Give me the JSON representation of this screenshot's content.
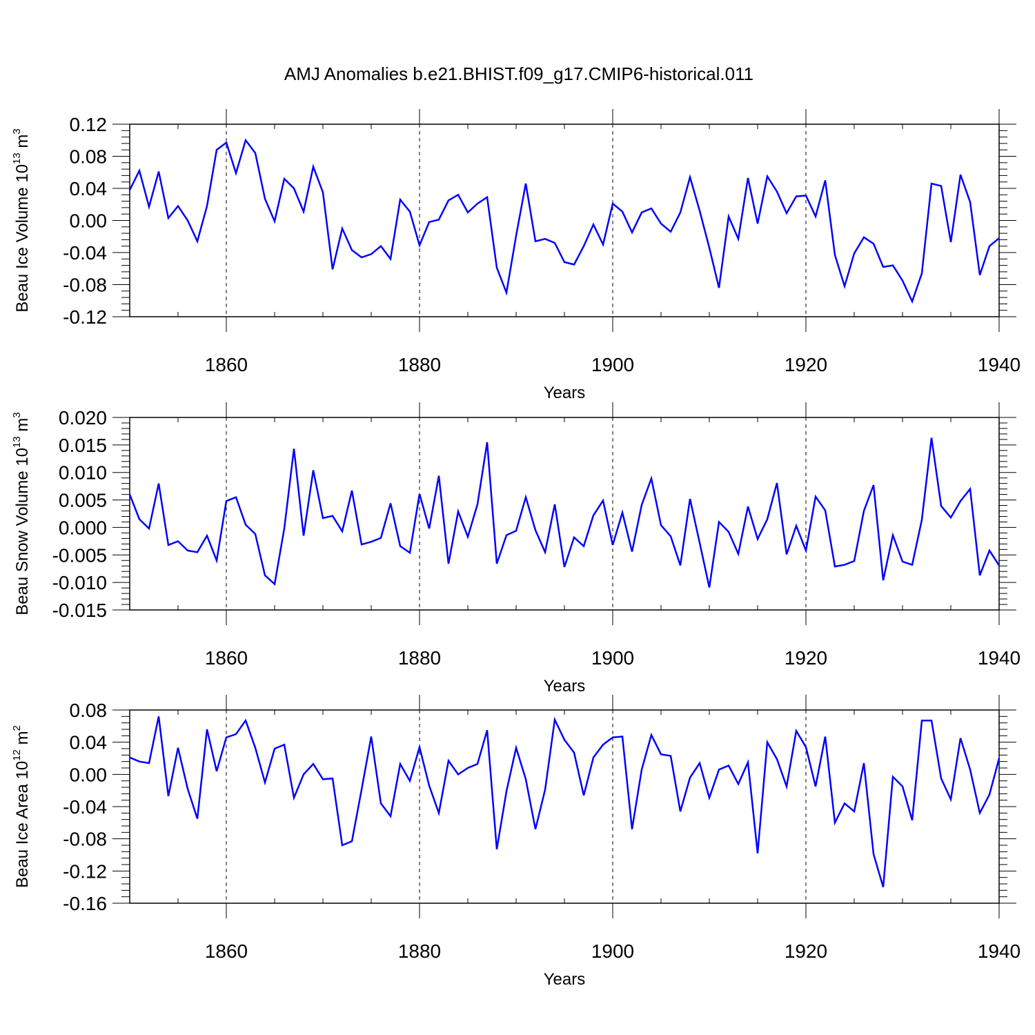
{
  "chart_data": {
    "type": "line",
    "title": "AMJ Anomalies b.e21.BHIST.f09_g17.CMIP6-historical.011",
    "line_color": "#0000ff",
    "xlim": [
      1850,
      1940
    ],
    "xticks": [
      1860,
      1880,
      1900,
      1920,
      1940
    ],
    "xtick_labels": [
      "1860",
      "1880",
      "1900",
      "1920",
      "1940"
    ],
    "xlabel": "Years",
    "x": [
      1850,
      1851,
      1852,
      1853,
      1854,
      1855,
      1856,
      1857,
      1858,
      1859,
      1860,
      1861,
      1862,
      1863,
      1864,
      1865,
      1866,
      1867,
      1868,
      1869,
      1870,
      1871,
      1872,
      1873,
      1874,
      1875,
      1876,
      1877,
      1878,
      1879,
      1880,
      1881,
      1882,
      1883,
      1884,
      1885,
      1886,
      1887,
      1888,
      1889,
      1890,
      1891,
      1892,
      1893,
      1894,
      1895,
      1896,
      1897,
      1898,
      1899,
      1900,
      1901,
      1902,
      1903,
      1904,
      1905,
      1906,
      1907,
      1908,
      1909,
      1910,
      1911,
      1912,
      1913,
      1914,
      1915,
      1916,
      1917,
      1918,
      1919,
      1920,
      1921,
      1922,
      1923,
      1924,
      1925,
      1926,
      1927,
      1928,
      1929,
      1930,
      1931,
      1932,
      1933,
      1934,
      1935,
      1936,
      1937,
      1938,
      1939,
      1940
    ],
    "panels": [
      {
        "name": "ice-volume",
        "ylabel_main": "Beau Ice Volume 10",
        "ylabel_exp": "13",
        "ylabel_unit": " m",
        "ylabel_unit_exp": "3",
        "ylim": [
          -0.12,
          0.12
        ],
        "yticks": [
          0.12,
          0.08,
          0.04,
          0.0,
          -0.04,
          -0.08,
          -0.12
        ],
        "ytick_labels": [
          "0.12",
          "0.08",
          "0.04",
          "0.00",
          "-0.04",
          "-0.08",
          "-0.12"
        ],
        "values": [
          0.038,
          0.062,
          0.017,
          0.061,
          0.003,
          0.018,
          0.0,
          -0.026,
          0.018,
          0.088,
          0.097,
          0.059,
          0.1,
          0.084,
          0.027,
          -0.001,
          0.052,
          0.04,
          0.011,
          0.067,
          0.035,
          -0.061,
          -0.01,
          -0.037,
          -0.046,
          -0.042,
          -0.032,
          -0.048,
          0.026,
          0.011,
          -0.031,
          -0.002,
          0.001,
          0.025,
          0.032,
          0.01,
          0.021,
          0.029,
          -0.059,
          -0.09,
          -0.019,
          0.046,
          -0.026,
          -0.023,
          -0.028,
          -0.052,
          -0.055,
          -0.032,
          -0.005,
          -0.03,
          0.021,
          0.011,
          -0.015,
          0.01,
          0.015,
          -0.004,
          -0.014,
          0.01,
          0.054,
          0.012,
          -0.034,
          -0.084,
          0.005,
          -0.023,
          0.053,
          -0.004,
          0.055,
          0.036,
          0.009,
          0.03,
          0.031,
          0.005,
          0.05,
          -0.043,
          -0.082,
          -0.041,
          -0.021,
          -0.029,
          -0.058,
          -0.056,
          -0.075,
          -0.101,
          -0.066,
          0.046,
          0.043,
          -0.027,
          0.057,
          0.023,
          -0.068,
          -0.032,
          -0.022
        ]
      },
      {
        "name": "snow-volume",
        "ylabel_main": "Beau Snow Volume 10",
        "ylabel_exp": "13",
        "ylabel_unit": " m",
        "ylabel_unit_exp": "3",
        "ylim": [
          -0.015,
          0.02
        ],
        "yticks": [
          0.02,
          0.015,
          0.01,
          0.005,
          0.0,
          -0.005,
          -0.01,
          -0.015
        ],
        "ytick_labels": [
          "0.020",
          "0.015",
          "0.010",
          "0.005",
          "0.000",
          "-0.005",
          "-0.010",
          "-0.015"
        ],
        "values": [
          0.006,
          0.0015,
          -0.0002,
          0.008,
          -0.0032,
          -0.0025,
          -0.0042,
          -0.0045,
          -0.0015,
          -0.006,
          0.0048,
          0.0055,
          0.0005,
          -0.0012,
          -0.0087,
          -0.0103,
          -0.0002,
          0.0143,
          -0.0015,
          0.0104,
          0.0017,
          0.0021,
          -0.0007,
          0.0067,
          -0.0031,
          -0.0026,
          -0.0019,
          0.0044,
          -0.0034,
          -0.0046,
          0.0061,
          -0.0002,
          0.0094,
          -0.0066,
          0.0029,
          -0.0017,
          0.0042,
          0.0155,
          -0.0066,
          -0.0014,
          -0.0006,
          0.0055,
          -0.0005,
          -0.0045,
          0.0042,
          -0.0072,
          -0.0018,
          -0.0034,
          0.0022,
          0.0049,
          -0.0032,
          0.0027,
          -0.0044,
          0.0041,
          0.0089,
          0.0004,
          -0.0016,
          -0.0069,
          0.0052,
          -0.0028,
          -0.0109,
          0.001,
          -0.0008,
          -0.0048,
          0.0038,
          -0.0021,
          0.0015,
          0.0081,
          -0.0049,
          0.0003,
          -0.0042,
          0.0056,
          0.0031,
          -0.0071,
          -0.0068,
          -0.0061,
          0.003,
          0.0077,
          -0.0096,
          -0.0014,
          -0.0062,
          -0.0068,
          0.0014,
          0.0163,
          0.0039,
          0.0018,
          0.0048,
          0.007,
          -0.0087,
          -0.0042,
          -0.0069
        ]
      },
      {
        "name": "ice-area",
        "ylabel_main": "Beau Ice Area 10",
        "ylabel_exp": "12",
        "ylabel_unit": " m",
        "ylabel_unit_exp": "2",
        "ylim": [
          -0.16,
          0.08
        ],
        "yticks": [
          0.08,
          0.04,
          0.0,
          -0.04,
          -0.08,
          -0.12,
          -0.16
        ],
        "ytick_labels": [
          "0.08",
          "0.04",
          "0.00",
          "-0.04",
          "-0.08",
          "-0.12",
          "-0.16"
        ],
        "values": [
          0.021,
          0.016,
          0.014,
          0.072,
          -0.027,
          0.033,
          -0.018,
          -0.055,
          0.056,
          0.004,
          0.046,
          0.05,
          0.067,
          0.033,
          -0.01,
          0.032,
          0.037,
          -0.029,
          0.0,
          0.013,
          -0.006,
          -0.005,
          -0.088,
          -0.083,
          -0.019,
          0.047,
          -0.036,
          -0.052,
          0.013,
          -0.008,
          0.034,
          -0.014,
          -0.048,
          0.017,
          0.0,
          0.008,
          0.013,
          0.055,
          -0.093,
          -0.021,
          0.033,
          -0.006,
          -0.068,
          -0.019,
          0.068,
          0.043,
          0.027,
          -0.026,
          0.021,
          0.037,
          0.046,
          0.047,
          -0.068,
          0.006,
          0.049,
          0.025,
          0.023,
          -0.046,
          -0.004,
          0.014,
          -0.029,
          0.006,
          0.011,
          -0.012,
          0.015,
          -0.098,
          0.04,
          0.019,
          -0.015,
          0.054,
          0.034,
          -0.015,
          0.047,
          -0.06,
          -0.036,
          -0.046,
          0.014,
          -0.099,
          -0.14,
          -0.003,
          -0.015,
          -0.057,
          0.067,
          0.067,
          -0.005,
          -0.031,
          0.045,
          0.006,
          -0.048,
          -0.025,
          0.02
        ]
      }
    ]
  }
}
